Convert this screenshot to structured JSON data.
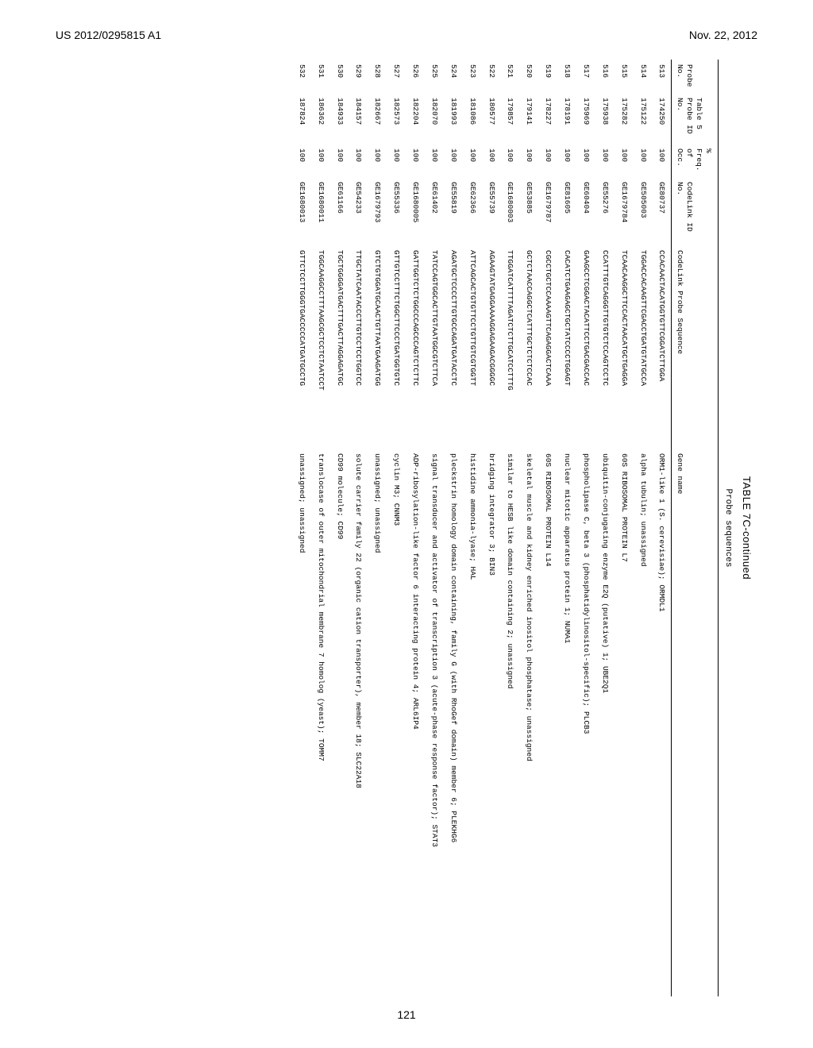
{
  "header": {
    "left": "US 2012/0295815 A1",
    "right": "Nov. 22, 2012"
  },
  "page_number": "121",
  "table": {
    "caption": "TABLE 7C-continued",
    "subcaption": "Probe sequences",
    "columns": [
      "Probe No.",
      "Table 5 Probe ID No.",
      "% Freq. of Occ.",
      "CodeLink ID No.",
      "CodeLink Probe Sequence",
      "Gene name"
    ],
    "rows": [
      [
        "513",
        "174250",
        "100",
        "GE80737",
        "CCACAACTACATGGTGTTCGGATCTTGGA",
        "ORM1-like 1 (S. cerevisiae); ORMDL1"
      ],
      [
        "514",
        "175122",
        "100",
        "GE505003",
        "TGGACCACAAGTTCGACCTGATGTATGCCA",
        "alpha tubulin; unassigned"
      ],
      [
        "515",
        "175282",
        "100",
        "GE1679784",
        "TCAACAAGGCTTCCACTAACATGCTGAGGA",
        "60S RIBOSOMAL PROTEIN L7"
      ],
      [
        "516",
        "175938",
        "100",
        "GE55276",
        "CCATTTGTCAGGGTTGTGTCTCCAGTCCTC",
        "ubiquitin-conjugating enzyme E2Q (putative) 1; UBE2Q1"
      ],
      [
        "517",
        "175969",
        "100",
        "GE60404",
        "GAAGCCTCGGACTACATTCCTGACGACCAC",
        "phospholipase C, beta 3 (phosphatidylinositol-specific); PLCB3"
      ],
      [
        "518",
        "178191",
        "100",
        "GE81605",
        "CACATCTGAAGAGCTGCTATCCCCTGGAGT",
        "nuclear mitotic apparatus protein 1; NUMA1"
      ],
      [
        "519",
        "178227",
        "100",
        "GE1679787",
        "CGCCTGCTCCAAAAGTTCAGAGGACTCAAA",
        "60S RIBOSOMAL PROTEIN L14"
      ],
      [
        "520",
        "179141",
        "100",
        "GE53885",
        "GCTCTAACCAGGCTCATTTGCTCTCTCCAC",
        "skeletal muscle and kidney enriched inositol phosphatase; unassigned"
      ],
      [
        "521",
        "179857",
        "100",
        "GE1680003",
        "TTGGATCATTTTAGATCTCTTGCATCCTTTG",
        "similar to HESB like domain containing 2; unassigned"
      ],
      [
        "522",
        "180577",
        "100",
        "GE55739",
        "AGAAGTATGAGGAAAAGGAGAAGACGGGGC",
        "bridging integrator 3; BIN3"
      ],
      [
        "523",
        "181086",
        "100",
        "GE62366",
        "ATTCAGCACTGTGTTCCTGTTGTCGTGGTT",
        "histidine ammonia-lyase; HAL"
      ],
      [
        "524",
        "181993",
        "100",
        "GE55819",
        "AGATGCTCCCCTTGTGCCAGATGATACCTC",
        "pleckstrin homology domain containing, family G (with RhoGef domain) member 6; PLEKHG6"
      ],
      [
        "525",
        "182070",
        "100",
        "GE61402",
        "TATCCAGTGGCACTTGTAATGGCGTCTTCA",
        "signal transducer and activator of transcription 3 (acute-phase response factor); STAT3"
      ],
      [
        "526",
        "182204",
        "100",
        "GE1680005",
        "GATTGGTCTCTGGCCCAGCCCAGTCTCTTC",
        "ADP-ribosylation-like factor 6 interacting protein 4; ARL6IP4"
      ],
      [
        "527",
        "182573",
        "100",
        "GE55336",
        "GTTGTCCTTTCTGGCTTCCCTGATGGTGTC",
        "cyclin M3; CNNM3"
      ],
      [
        "528",
        "182667",
        "100",
        "GE1679793",
        "GTCTGTGGATGCAACTGTTAATGAAGATGG",
        "unassigned; unassigned"
      ],
      [
        "529",
        "184157",
        "100",
        "GE54233",
        "TTGCTATCAATACCCTTGTCCTCCTGGTCC",
        "solute carrier family 22 (organic cation transporter), member 18; SLC22A18"
      ],
      [
        "530",
        "184933",
        "100",
        "GE61166",
        "TGCTGGGGATGACTTTGACTTAGGAGATGC",
        "CD99 molecule; CD99"
      ],
      [
        "531",
        "186362",
        "100",
        "GE1680011",
        "TGGCAAGGCCTTTAAGCGCTCCTCTAATCCT",
        "translocase of outer mitochondrial membrane 7 homolog (yeast); TOMM7"
      ],
      [
        "532",
        "187824",
        "100",
        "GE1680013",
        "GTTCTCCTTGGGTGACCCCCATGATGCCTG",
        "unassigned; unassigned"
      ]
    ]
  }
}
